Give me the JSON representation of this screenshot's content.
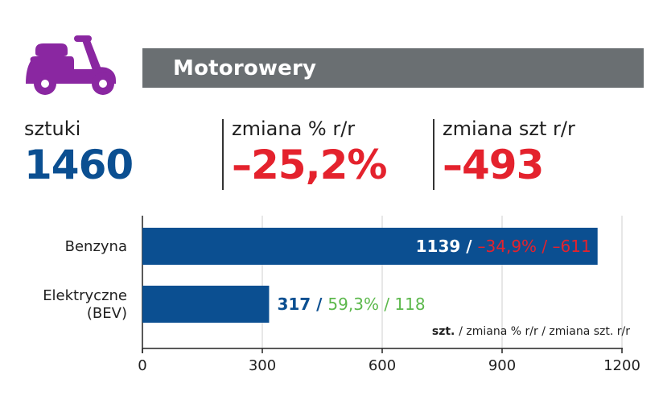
{
  "header": {
    "icon": "scooter-icon",
    "title": "Motorowery"
  },
  "kpis": [
    {
      "label": "sztuki",
      "value": "1460",
      "color": "#0b4f91"
    },
    {
      "label": "zmiana % r/r",
      "value": "–25,2%",
      "color": "#e4222d"
    },
    {
      "label": "zmiana szt r/r",
      "value": "–493",
      "color": "#e4222d"
    }
  ],
  "colors": {
    "brand_purple": "#8a27a1",
    "banner_gray": "#6a6f72",
    "bar_blue": "#0b4f91",
    "negative_red": "#e4222d",
    "positive_green": "#5cb84c"
  },
  "chart_data": {
    "type": "bar",
    "orientation": "horizontal",
    "categories": [
      "Benzyna",
      "Elektryczne\n(BEV)"
    ],
    "values": [
      1139,
      317
    ],
    "xlim": [
      0,
      1200
    ],
    "xticks": [
      "0",
      "300",
      "600",
      "900",
      "1200"
    ],
    "grid": true,
    "annotations": [
      {
        "count": "1139",
        "sep": "/",
        "pct": "–34,9%",
        "diff": "–611",
        "trend": "negative"
      },
      {
        "count": "317",
        "sep": "/",
        "pct": "59,3%",
        "diff": "118",
        "trend": "positive"
      }
    ],
    "legend_note": {
      "bold": "szt.",
      "rest": "/ zmiana % r/r / zmiana szt. r/r"
    }
  }
}
